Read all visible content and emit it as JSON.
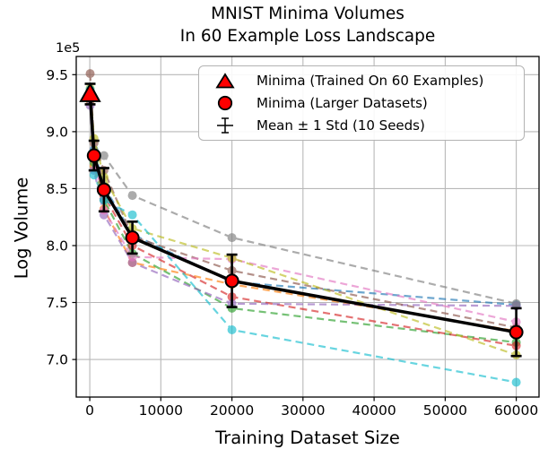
{
  "chart_data": {
    "type": "line",
    "title": "MNIST Minima Volumes\nIn 60 Example Loss Landscape",
    "title_line1": "MNIST Minima Volumes",
    "title_line2": "In 60 Example Loss Landscape",
    "xlabel": "Training Dataset Size",
    "ylabel": "Log Volume",
    "y_offset_label": "1e5",
    "grid": true,
    "grid_color": "#b8b8b8",
    "xlim": [
      -1900,
      63200
    ],
    "ylim": [
      6.67,
      9.66
    ],
    "xticks": [
      0,
      10000,
      20000,
      30000,
      40000,
      50000,
      60000
    ],
    "xtick_labels": [
      "0",
      "10000",
      "20000",
      "30000",
      "40000",
      "50000",
      "60000"
    ],
    "yticks": [
      7.0,
      7.5,
      8.0,
      8.5,
      9.0,
      9.5
    ],
    "ytick_labels": [
      "7.0",
      "7.5",
      "8.0",
      "8.5",
      "9.0",
      "9.5"
    ],
    "x": [
      60,
      600,
      2000,
      6000,
      20000,
      60000
    ],
    "mean_series": {
      "name": "Mean",
      "line_color": "#000000",
      "marker_fill": "#ff0000",
      "marker_edge": "#000000",
      "first_point_marker": "triangle",
      "other_points_marker": "circle",
      "values": [
        9.33,
        8.79,
        8.49,
        8.07,
        7.69,
        7.24
      ],
      "std": [
        0.09,
        0.13,
        0.19,
        0.14,
        0.23,
        0.21
      ]
    },
    "seeds": [
      {
        "name": "blue",
        "color": "#1f77b4",
        "values": [
          9.32,
          8.84,
          8.52,
          8.1,
          7.68,
          7.48
        ]
      },
      {
        "name": "orange",
        "color": "#ff7f0e",
        "values": [
          9.27,
          8.7,
          8.32,
          7.85,
          7.66,
          7.25
        ]
      },
      {
        "name": "green",
        "color": "#2ca02c",
        "values": [
          9.28,
          8.73,
          8.4,
          7.93,
          7.45,
          7.15
        ]
      },
      {
        "name": "red",
        "color": "#d62728",
        "values": [
          9.3,
          8.76,
          8.44,
          8.0,
          7.55,
          7.12
        ]
      },
      {
        "name": "purple",
        "color": "#9467bd",
        "values": [
          9.23,
          8.66,
          8.27,
          7.85,
          7.49,
          7.47
        ]
      },
      {
        "name": "brown",
        "color": "#8c564b",
        "values": [
          9.51,
          8.9,
          8.66,
          8.08,
          7.78,
          7.28
        ]
      },
      {
        "name": "pink",
        "color": "#e377c2",
        "values": [
          9.35,
          8.8,
          8.31,
          7.9,
          7.88,
          7.33
        ]
      },
      {
        "name": "gray",
        "color": "#7f7f7f",
        "values": [
          9.36,
          8.82,
          8.79,
          8.44,
          8.07,
          7.49
        ]
      },
      {
        "name": "olive",
        "color": "#bcbd22",
        "values": [
          9.38,
          8.94,
          8.6,
          8.15,
          7.89,
          7.04
        ]
      },
      {
        "name": "cyan",
        "color": "#17becf",
        "values": [
          9.37,
          8.62,
          8.4,
          8.27,
          7.26,
          6.8
        ]
      }
    ],
    "seed_line_style": "dashed",
    "seed_opacity": 0.65,
    "legend_position": "upper right",
    "legend": {
      "entries": [
        {
          "icon": "triangle",
          "label": "Minima (Trained On 60 Examples)"
        },
        {
          "icon": "circle",
          "label": "Minima (Larger Datasets)"
        },
        {
          "icon": "errorbar",
          "label": "Mean ± 1 Std (10 Seeds)"
        }
      ]
    }
  }
}
